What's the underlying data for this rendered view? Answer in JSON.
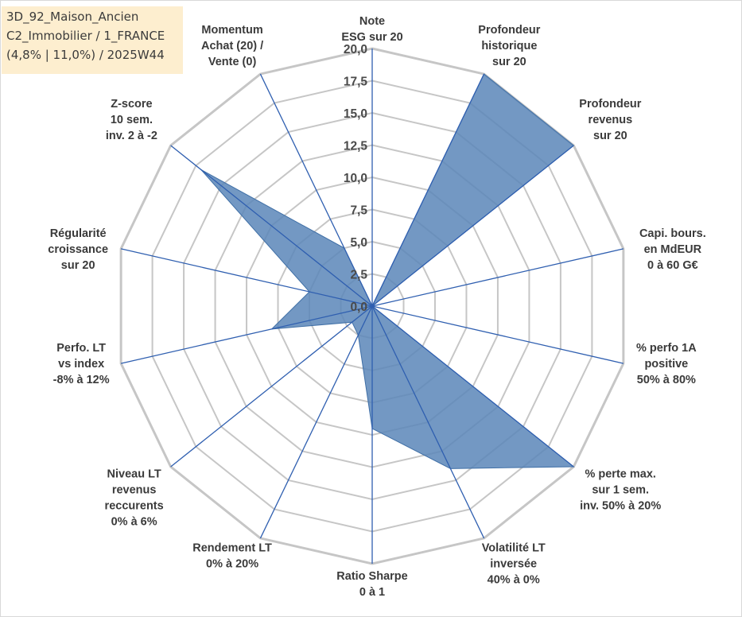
{
  "info_box": {
    "line1": "3D_92_Maison_Ancien",
    "line2": "C2_Immobilier / 1_FRANCE",
    "line3": "(4,8% | 11,0%) / 2025W44"
  },
  "colors": {
    "fill": "#5b86b8",
    "stroke": "#3f6fa6",
    "grid": "#c6c6c6",
    "spoke": "#2f5fb0",
    "info_bg": "#fdeecf"
  },
  "chart_data": {
    "type": "radar",
    "rmin": 0,
    "rmax": 20,
    "tick_labels": [
      "0,0",
      "2,5",
      "5,0",
      "7,5",
      "10,0",
      "12,5",
      "15,0",
      "17,5",
      "20,0"
    ],
    "axes": [
      {
        "lines": [
          "Note",
          "ESG sur 20"
        ]
      },
      {
        "lines": [
          "Profondeur",
          "historique",
          "sur 20"
        ]
      },
      {
        "lines": [
          "Profondeur",
          "revenus",
          "sur 20"
        ]
      },
      {
        "lines": [
          "Capi. bours.",
          "en MdEUR",
          "0 à 60 G€"
        ]
      },
      {
        "lines": [
          "% perfo 1A",
          "positive",
          "50% à 80%"
        ]
      },
      {
        "lines": [
          "% perte max.",
          "sur 1 sem.",
          "inv. 50% à 20%"
        ]
      },
      {
        "lines": [
          "Volatilité LT",
          "inversée",
          "40% à 0%"
        ]
      },
      {
        "lines": [
          "Ratio Sharpe",
          "0 à 1"
        ]
      },
      {
        "lines": [
          "Rendement LT",
          "0% à 20%"
        ]
      },
      {
        "lines": [
          "Niveau LT",
          "revenus",
          "reccurents",
          "0% à 6%"
        ]
      },
      {
        "lines": [
          "Perfo. LT",
          "vs index",
          "-8% à 12%"
        ]
      },
      {
        "lines": [
          "Régularité",
          "croissance",
          "sur 20"
        ]
      },
      {
        "lines": [
          "Z-score",
          "10 sem.",
          "inv. 2 à -2"
        ]
      },
      {
        "lines": [
          "Momentum",
          "Achat (20) /",
          "Vente (0)"
        ]
      }
    ],
    "values": [
      0,
      20,
      20,
      0,
      0,
      20,
      14,
      9.5,
      2.5,
      2,
      8,
      5,
      17,
      5
    ]
  }
}
